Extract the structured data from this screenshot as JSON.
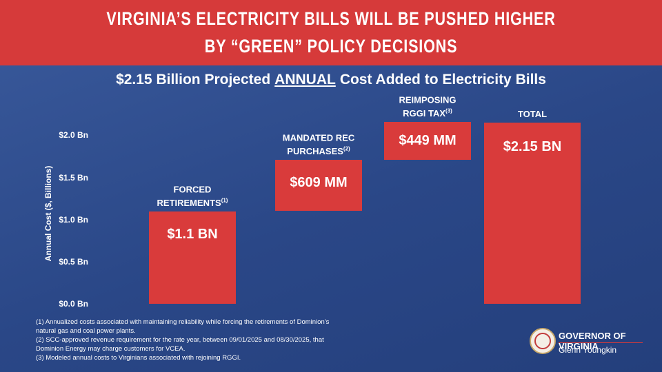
{
  "header": {
    "title": [
      "VIRGINIA’S ELECTRICITY BILLS WILL BE PUSHED HIGHER",
      "BY “GREEN” POLICY DECISIONS"
    ]
  },
  "chart_data": {
    "type": "waterfall",
    "subtitle": [
      "$2.15 Billion Projected",
      "ANNUAL",
      "Cost Added to Electricity Bills"
    ],
    "y_label": "Annual Cost ($, Billions)",
    "categories": [
      "FORCED RETIREMENTS",
      "MANDATED REC PURCHASES",
      "REIMPOSING RGGI TAX",
      "TOTAL"
    ],
    "category_notes": [
      "(1)",
      "(2)",
      "(3)",
      null
    ],
    "values": [
      1.1,
      0.609,
      0.449,
      2.15
    ],
    "value_labels": [
      "$1.1 BN",
      "$609 MM",
      "$449 MM",
      "$2.15 BN"
    ],
    "totals": [
      false,
      false,
      false,
      true
    ],
    "color": "#d93b3b",
    "ylim": [
      0,
      2.2
    ],
    "yticks": [
      {
        "value": 0,
        "label": "$0.0 Bn"
      },
      {
        "value": 0.5,
        "label": "$0.5 Bn"
      },
      {
        "value": 1.0,
        "label": "$1.0 Bn"
      },
      {
        "value": 1.5,
        "label": "$1.5 Bn"
      },
      {
        "value": 2.0,
        "label": "$2.0 Bn"
      }
    ],
    "grid": false
  },
  "footnotes": [
    "(1) Annualized costs associated with maintaining reliability while forcing the retirements of Dominion’s natural gas and coal power plants.",
    "(2) SCC-approved revenue requirement for the rate year, between 09/01/2025 and 08/30/2025, that Dominion Energy may charge customers for VCEA.",
    "(3) Modeled annual costs to Virginians associated with rejoining RGGI."
  ],
  "logo": {
    "title": "GOVERNOR OF VIRGINIA",
    "name": "Glenn Youngkin"
  }
}
